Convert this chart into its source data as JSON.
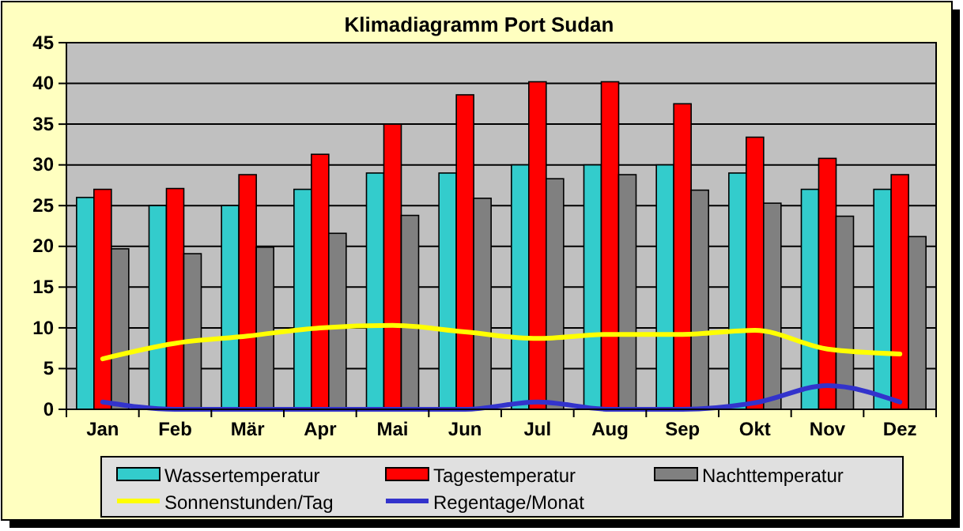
{
  "chart_data": {
    "type": "bar",
    "title": "Klimadiagramm Port Sudan",
    "categories": [
      "Jan",
      "Feb",
      "Mär",
      "Apr",
      "Mai",
      "Jun",
      "Jul",
      "Aug",
      "Sep",
      "Okt",
      "Nov",
      "Dez"
    ],
    "series": [
      {
        "name": "Wassertemperatur",
        "color": "#33cccc",
        "values": [
          26,
          25,
          25,
          27,
          29,
          29,
          30,
          30,
          30,
          29,
          27,
          27
        ]
      },
      {
        "name": "Tagestemperatur",
        "color": "#ff0000",
        "values": [
          27,
          27.1,
          28.8,
          31.3,
          35,
          38.6,
          40.2,
          40.2,
          37.5,
          33.4,
          30.8,
          28.8
        ]
      },
      {
        "name": "Nachttemperatur",
        "color": "#808080",
        "values": [
          19.7,
          19.1,
          19.9,
          21.6,
          23.8,
          25.9,
          28.3,
          28.8,
          26.9,
          25.3,
          23.7,
          21.2
        ]
      },
      {
        "name": "Sonnenstunden/Tag",
        "type": "line",
        "color": "#ffff00",
        "values": [
          6.2,
          8.1,
          9,
          10,
          10.3,
          9.5,
          8.7,
          9.2,
          9.2,
          9.7,
          7.4,
          6.8
        ]
      },
      {
        "name": "Regentage/Monat",
        "type": "line",
        "color": "#3333cc",
        "values": [
          0.9,
          0,
          0,
          0,
          0,
          0,
          0.9,
          0,
          0,
          0.8,
          2.9,
          0.9
        ]
      }
    ],
    "ylim": [
      0,
      45
    ],
    "yticks": [
      0,
      5,
      10,
      15,
      20,
      25,
      30,
      35,
      40,
      45
    ],
    "grid": "y",
    "legend": "bottom"
  }
}
